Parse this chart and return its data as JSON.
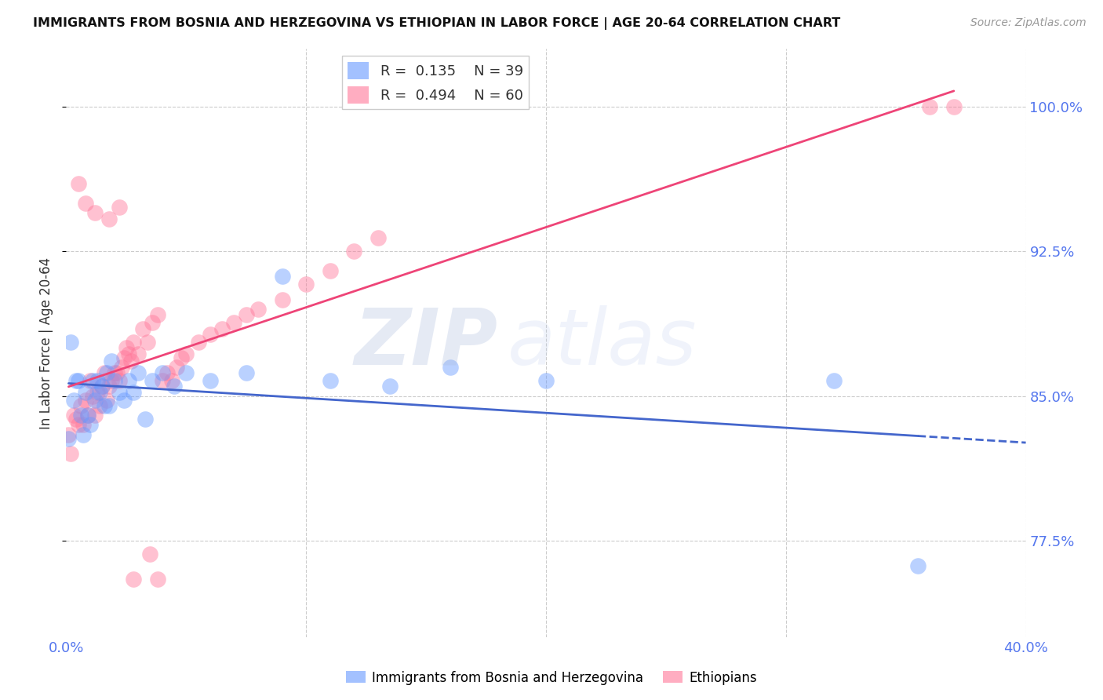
{
  "title": "IMMIGRANTS FROM BOSNIA AND HERZEGOVINA VS ETHIOPIAN IN LABOR FORCE | AGE 20-64 CORRELATION CHART",
  "source": "Source: ZipAtlas.com",
  "ylabel": "In Labor Force | Age 20-64",
  "xlim": [
    0.0,
    0.4
  ],
  "ylim": [
    0.725,
    1.03
  ],
  "xticks": [
    0.0,
    0.1,
    0.2,
    0.3,
    0.4
  ],
  "xticklabels": [
    "0.0%",
    "",
    "",
    "",
    "40.0%"
  ],
  "yticks": [
    0.775,
    0.85,
    0.925,
    1.0
  ],
  "yticklabels": [
    "77.5%",
    "85.0%",
    "92.5%",
    "100.0%"
  ],
  "bosnia_R": 0.135,
  "bosnia_N": 39,
  "ethiopian_R": 0.494,
  "ethiopian_N": 60,
  "bosnia_color": "#6699ff",
  "ethiopian_color": "#ff7799",
  "bosnia_x": [
    0.001,
    0.002,
    0.003,
    0.004,
    0.005,
    0.006,
    0.007,
    0.008,
    0.009,
    0.01,
    0.011,
    0.012,
    0.013,
    0.014,
    0.015,
    0.016,
    0.017,
    0.018,
    0.019,
    0.02,
    0.022,
    0.024,
    0.026,
    0.028,
    0.03,
    0.033,
    0.036,
    0.04,
    0.045,
    0.05,
    0.06,
    0.075,
    0.09,
    0.11,
    0.135,
    0.16,
    0.2,
    0.32,
    0.355
  ],
  "bosnia_y": [
    0.828,
    0.878,
    0.848,
    0.858,
    0.858,
    0.84,
    0.83,
    0.852,
    0.84,
    0.835,
    0.858,
    0.848,
    0.858,
    0.852,
    0.855,
    0.845,
    0.862,
    0.845,
    0.868,
    0.858,
    0.852,
    0.848,
    0.858,
    0.852,
    0.862,
    0.838,
    0.858,
    0.862,
    0.855,
    0.862,
    0.858,
    0.862,
    0.912,
    0.858,
    0.855,
    0.865,
    0.858,
    0.858,
    0.762
  ],
  "ethiopian_x": [
    0.001,
    0.002,
    0.003,
    0.004,
    0.005,
    0.006,
    0.007,
    0.008,
    0.009,
    0.01,
    0.011,
    0.012,
    0.013,
    0.014,
    0.015,
    0.016,
    0.017,
    0.018,
    0.019,
    0.02,
    0.021,
    0.022,
    0.023,
    0.024,
    0.025,
    0.026,
    0.027,
    0.028,
    0.03,
    0.032,
    0.034,
    0.036,
    0.038,
    0.04,
    0.042,
    0.044,
    0.046,
    0.048,
    0.05,
    0.055,
    0.06,
    0.065,
    0.07,
    0.075,
    0.08,
    0.09,
    0.1,
    0.11,
    0.12,
    0.13,
    0.005,
    0.008,
    0.012,
    0.018,
    0.022,
    0.028,
    0.035,
    0.038,
    0.36,
    0.37
  ],
  "ethiopian_y": [
    0.83,
    0.82,
    0.84,
    0.838,
    0.835,
    0.845,
    0.835,
    0.848,
    0.84,
    0.858,
    0.85,
    0.84,
    0.852,
    0.845,
    0.855,
    0.862,
    0.848,
    0.855,
    0.858,
    0.862,
    0.862,
    0.858,
    0.865,
    0.87,
    0.875,
    0.872,
    0.868,
    0.878,
    0.872,
    0.885,
    0.878,
    0.888,
    0.892,
    0.858,
    0.862,
    0.858,
    0.865,
    0.87,
    0.872,
    0.878,
    0.882,
    0.885,
    0.888,
    0.892,
    0.895,
    0.9,
    0.908,
    0.915,
    0.925,
    0.932,
    0.96,
    0.95,
    0.945,
    0.942,
    0.948,
    0.755,
    0.768,
    0.755,
    1.0,
    1.0
  ],
  "watermark_zip": "ZIP",
  "watermark_atlas": "atlas",
  "background_color": "#ffffff",
  "grid_color": "#cccccc"
}
